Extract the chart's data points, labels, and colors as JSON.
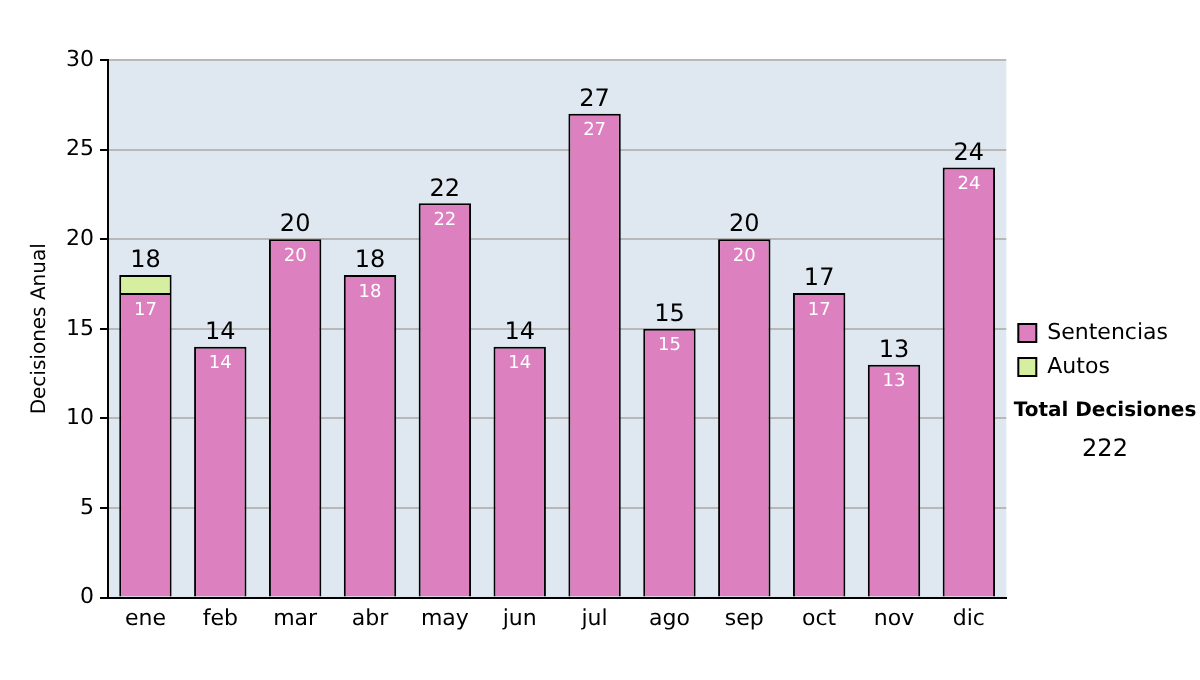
{
  "chart_data": {
    "type": "bar",
    "stacked": true,
    "ylabel": "Decisiones Anual",
    "categories": [
      "ene",
      "feb",
      "mar",
      "abr",
      "may",
      "jun",
      "jul",
      "ago",
      "sep",
      "oct",
      "nov",
      "dic"
    ],
    "series": [
      {
        "name": "Sentencias",
        "color": "#dd80bf",
        "values": [
          17,
          14,
          20,
          18,
          22,
          14,
          27,
          15,
          20,
          17,
          13,
          24
        ],
        "value_labels": [
          "17",
          "14",
          "20",
          "18",
          "22",
          "14",
          "27",
          "15",
          "20",
          "17",
          "13",
          "24"
        ]
      },
      {
        "name": "Autos",
        "color": "#d6eea0",
        "values": [
          1,
          null,
          null,
          null,
          null,
          null,
          null,
          null,
          null,
          null,
          null,
          null
        ]
      }
    ],
    "totals": [
      "18",
      "14",
      "20",
      "18",
      "22",
      "14",
      "27",
      "15",
      "20",
      "17",
      "13",
      "24"
    ],
    "ylim": [
      0,
      30
    ],
    "yticks": [
      0,
      5,
      10,
      15,
      20,
      25,
      30
    ],
    "grid": "y",
    "legend": "right",
    "annotations": [
      "Total Decisiones",
      "222"
    ]
  }
}
